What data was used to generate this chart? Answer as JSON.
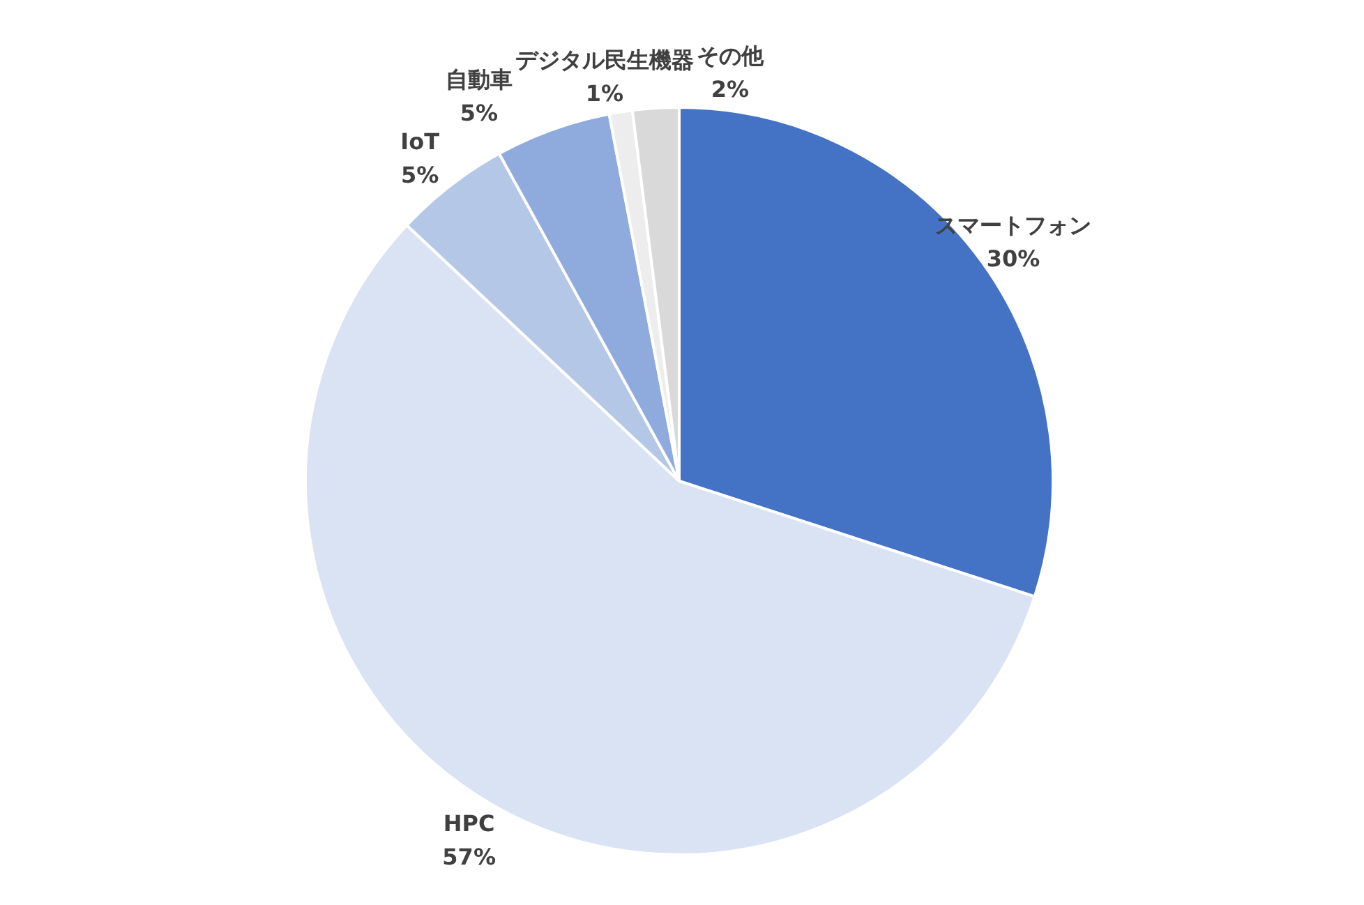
{
  "chart_data": {
    "type": "pie",
    "categories": [
      "スマートフォン",
      "HPC",
      "IoT",
      "自動車",
      "デジタル民生機器",
      "その他"
    ],
    "values": [
      30,
      57,
      5,
      5,
      1,
      2
    ],
    "value_labels": [
      "30%",
      "57%",
      "5%",
      "5%",
      "1%",
      "2%"
    ],
    "colors": [
      "#4472c4",
      "#dae3f3",
      "#b4c7e7",
      "#8faadc",
      "#ededed",
      "#d9d9d9"
    ]
  }
}
